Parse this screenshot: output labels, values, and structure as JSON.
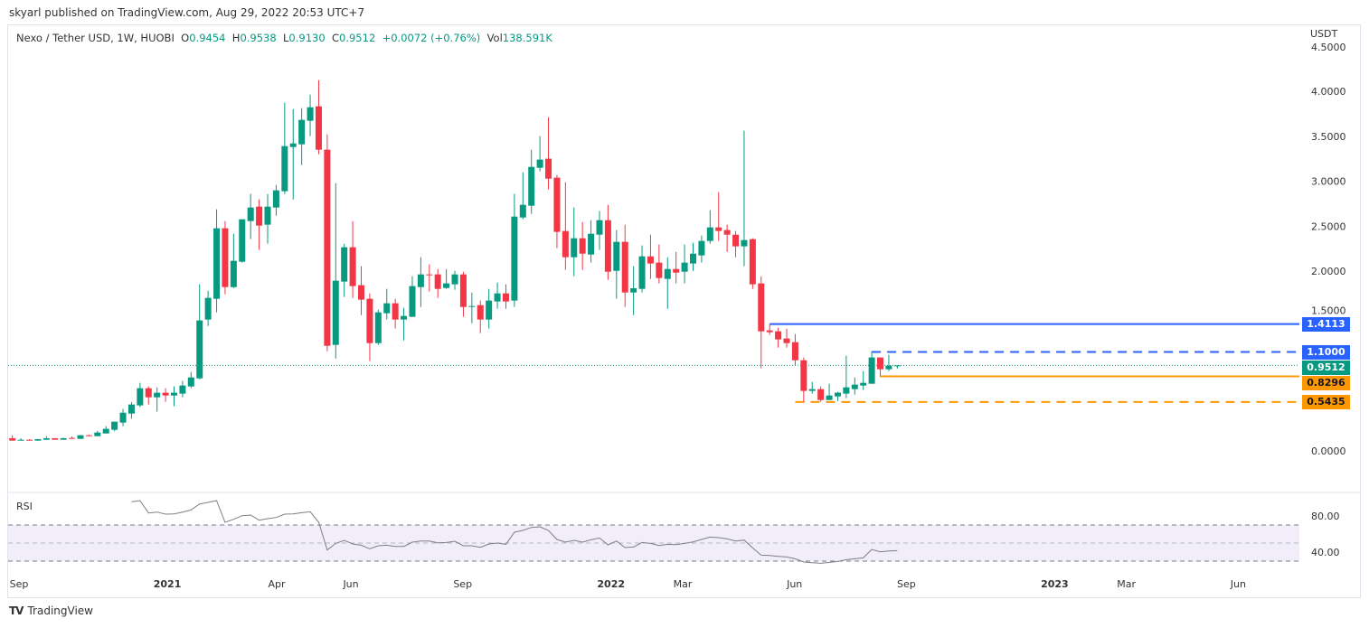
{
  "header": {
    "published": "skyarl published on TradingView.com, Aug 29, 2022 20:53 UTC+7"
  },
  "legend": {
    "symbol": "Nexo / Tether USD, 1W, HUOBI",
    "o_label": "O",
    "o": "0.9454",
    "h_label": "H",
    "h": "0.9538",
    "l_label": "L",
    "l": "0.9130",
    "c_label": "C",
    "c": "0.9512",
    "change": "+0.0072 (+0.76%)",
    "vol_label": "Vol",
    "vol": "138.591K"
  },
  "currency": "USDT",
  "rsi": {
    "label": "RSI",
    "ticks": [
      "80.00",
      "40.00"
    ]
  },
  "footer": {
    "brand": "TradingView",
    "logo": "TV"
  },
  "colors": {
    "up": "#089981",
    "down": "#f23645",
    "blue": "#2962ff",
    "orange": "#ff9800",
    "rsi": "#7e7e8a",
    "band": "#7e57c2"
  },
  "price_tags": [
    {
      "value": "1.4113",
      "color": "#2962ff",
      "text": "#fff"
    },
    {
      "value": "1.1000",
      "color": "#2962ff",
      "text": "#fff"
    },
    {
      "value": "0.9512",
      "color": "#089981",
      "text": "#fff"
    },
    {
      "value": "0.8296",
      "color": "#ff9800",
      "text": "#131722"
    },
    {
      "value": "0.5435",
      "color": "#ff9800",
      "text": "#131722"
    }
  ],
  "chart_data": {
    "type": "candlestick",
    "title": "Nexo / Tether USD, 1W, HUOBI",
    "start_week": "2020-08-31",
    "y_ticks": [
      "4.5000",
      "4.0000",
      "3.5000",
      "3.0000",
      "2.5000",
      "2.0000",
      "1.5000",
      "0.0000"
    ],
    "y_tick_values": [
      4.5,
      4.0,
      3.5,
      3.0,
      2.5,
      2.0,
      1.5,
      0.0
    ],
    "x_ticks": [
      {
        "label": "Sep",
        "date": "2020-09-01"
      },
      {
        "label": "2021",
        "date": "2021-01-01",
        "bold": true
      },
      {
        "label": "Apr",
        "date": "2021-04-01"
      },
      {
        "label": "Jun",
        "date": "2021-06-01"
      },
      {
        "label": "Sep",
        "date": "2021-09-01"
      },
      {
        "label": "2022",
        "date": "2022-01-01",
        "bold": true
      },
      {
        "label": "Mar",
        "date": "2022-03-01"
      },
      {
        "label": "Jun",
        "date": "2022-06-01"
      },
      {
        "label": "Sep",
        "date": "2022-09-01"
      },
      {
        "label": "2023",
        "date": "2023-01-01",
        "bold": true
      },
      {
        "label": "Mar",
        "date": "2023-03-01"
      },
      {
        "label": "Jun",
        "date": "2023-06-01"
      }
    ],
    "ohlc": [
      [
        0.141,
        0.174,
        0.114,
        0.114
      ],
      [
        0.114,
        0.141,
        0.114,
        0.124
      ],
      [
        0.124,
        0.13,
        0.114,
        0.114
      ],
      [
        0.114,
        0.131,
        0.114,
        0.131
      ],
      [
        0.124,
        0.164,
        0.124,
        0.141
      ],
      [
        0.141,
        0.141,
        0.124,
        0.124
      ],
      [
        0.124,
        0.147,
        0.124,
        0.141
      ],
      [
        0.144,
        0.16,
        0.134,
        0.134
      ],
      [
        0.134,
        0.178,
        0.134,
        0.174
      ],
      [
        0.174,
        0.181,
        0.164,
        0.164
      ],
      [
        0.164,
        0.224,
        0.164,
        0.204
      ],
      [
        0.194,
        0.275,
        0.194,
        0.245
      ],
      [
        0.235,
        0.325,
        0.218,
        0.325
      ],
      [
        0.315,
        0.466,
        0.275,
        0.425
      ],
      [
        0.415,
        0.543,
        0.358,
        0.516
      ],
      [
        0.506,
        0.757,
        0.486,
        0.697
      ],
      [
        0.697,
        0.717,
        0.516,
        0.596
      ],
      [
        0.596,
        0.707,
        0.436,
        0.647
      ],
      [
        0.647,
        0.697,
        0.546,
        0.616
      ],
      [
        0.616,
        0.717,
        0.496,
        0.647
      ],
      [
        0.637,
        0.777,
        0.596,
        0.727
      ],
      [
        0.717,
        0.878,
        0.697,
        0.817
      ],
      [
        0.807,
        1.853,
        0.797,
        1.451
      ],
      [
        1.461,
        1.782,
        1.39,
        1.702
      ],
      [
        1.692,
        2.687,
        1.541,
        2.476
      ],
      [
        2.476,
        2.556,
        1.742,
        1.822
      ],
      [
        1.822,
        2.415,
        1.812,
        2.114
      ],
      [
        2.104,
        2.576,
        2.094,
        2.576
      ],
      [
        2.556,
        2.858,
        2.355,
        2.707
      ],
      [
        2.717,
        2.797,
        2.235,
        2.506
      ],
      [
        2.516,
        2.858,
        2.305,
        2.717
      ],
      [
        2.707,
        2.958,
        2.616,
        2.898
      ],
      [
        2.888,
        3.873,
        2.858,
        3.39
      ],
      [
        3.38,
        3.802,
        2.797,
        3.42
      ],
      [
        3.41,
        3.812,
        3.179,
        3.682
      ],
      [
        3.672,
        3.963,
        3.501,
        3.822
      ],
      [
        3.832,
        4.124,
        3.3,
        3.35
      ],
      [
        3.35,
        3.521,
        1.109,
        1.169
      ],
      [
        1.179,
        2.978,
        1.028,
        1.893
      ],
      [
        1.883,
        2.305,
        1.712,
        2.265
      ],
      [
        2.265,
        2.556,
        1.702,
        1.833
      ],
      [
        1.843,
        2.054,
        1.511,
        1.682
      ],
      [
        1.692,
        1.752,
        0.998,
        1.199
      ],
      [
        1.199,
        1.571,
        1.179,
        1.541
      ],
      [
        1.531,
        1.802,
        1.461,
        1.642
      ],
      [
        1.642,
        1.692,
        1.36,
        1.461
      ],
      [
        1.461,
        1.591,
        1.229,
        1.501
      ],
      [
        1.491,
        1.943,
        1.491,
        1.833
      ],
      [
        1.822,
        2.154,
        1.601,
        1.963
      ],
      [
        1.963,
        2.074,
        1.772,
        1.953
      ],
      [
        1.963,
        2.023,
        1.702,
        1.802
      ],
      [
        1.812,
        2.023,
        1.802,
        1.863
      ],
      [
        1.853,
        2.003,
        1.792,
        1.963
      ],
      [
        1.963,
        1.993,
        1.491,
        1.601
      ],
      [
        1.601,
        1.762,
        1.42,
        1.611
      ],
      [
        1.621,
        1.672,
        1.31,
        1.461
      ],
      [
        1.461,
        1.802,
        1.36,
        1.672
      ],
      [
        1.662,
        1.873,
        1.581,
        1.752
      ],
      [
        1.752,
        1.853,
        1.581,
        1.662
      ],
      [
        1.672,
        2.858,
        1.601,
        2.606
      ],
      [
        2.596,
        3.099,
        2.576,
        2.737
      ],
      [
        2.727,
        3.35,
        2.637,
        3.159
      ],
      [
        3.149,
        3.501,
        3.109,
        3.24
      ],
      [
        3.25,
        3.712,
        2.908,
        3.028
      ],
      [
        3.039,
        3.069,
        2.255,
        2.436
      ],
      [
        2.446,
        2.988,
        2.013,
        2.154
      ],
      [
        2.154,
        2.707,
        1.943,
        2.365
      ],
      [
        2.365,
        2.546,
        2.013,
        2.194
      ],
      [
        2.184,
        2.566,
        2.094,
        2.415
      ],
      [
        2.405,
        2.667,
        2.235,
        2.566
      ],
      [
        2.566,
        2.737,
        1.903,
        1.993
      ],
      [
        2.003,
        2.456,
        1.692,
        2.325
      ],
      [
        2.325,
        2.516,
        1.601,
        1.762
      ],
      [
        1.762,
        2.054,
        1.511,
        1.809
      ],
      [
        1.802,
        2.285,
        1.762,
        2.164
      ],
      [
        2.164,
        2.405,
        1.913,
        2.084
      ],
      [
        2.094,
        2.295,
        1.863,
        1.923
      ],
      [
        1.913,
        2.154,
        1.581,
        2.023
      ],
      [
        2.023,
        2.214,
        1.863,
        1.983
      ],
      [
        1.993,
        2.295,
        1.863,
        2.094
      ],
      [
        2.084,
        2.315,
        2.003,
        2.194
      ],
      [
        2.174,
        2.395,
        2.094,
        2.335
      ],
      [
        2.335,
        2.677,
        2.305,
        2.486
      ],
      [
        2.486,
        2.878,
        2.335,
        2.446
      ],
      [
        2.456,
        2.516,
        2.214,
        2.405
      ],
      [
        2.405,
        2.446,
        2.154,
        2.275
      ],
      [
        2.275,
        3.561,
        2.054,
        2.345
      ],
      [
        2.355,
        2.365,
        1.802,
        1.853
      ],
      [
        1.863,
        1.943,
        0.918,
        1.33
      ],
      [
        1.34,
        1.41,
        1.29,
        1.32
      ],
      [
        1.33,
        1.37,
        1.149,
        1.24
      ],
      [
        1.25,
        1.36,
        1.149,
        1.199
      ],
      [
        1.209,
        1.3,
        0.948,
        1.008
      ],
      [
        1.008,
        1.039,
        0.546,
        0.667
      ],
      [
        0.667,
        0.767,
        0.637,
        0.687
      ],
      [
        0.687,
        0.717,
        0.546,
        0.566
      ],
      [
        0.566,
        0.747,
        0.566,
        0.616
      ],
      [
        0.606,
        0.657,
        0.556,
        0.647
      ],
      [
        0.637,
        1.059,
        0.586,
        0.707
      ],
      [
        0.687,
        0.817,
        0.626,
        0.737
      ],
      [
        0.727,
        0.888,
        0.677,
        0.757
      ],
      [
        0.747,
        1.109,
        0.747,
        1.039
      ],
      [
        1.039,
        1.039,
        0.827,
        0.908
      ],
      [
        0.908,
        1.069,
        0.888,
        0.948
      ],
      [
        0.9454,
        0.9538,
        0.913,
        0.9512
      ]
    ],
    "rsi_start_index": 14,
    "rsi": [
      95.6,
      97,
      83.3,
      84.3,
      82,
      82.3,
      84.3,
      86.6,
      93.3,
      95,
      97,
      73,
      76.3,
      80.3,
      81,
      75.3,
      77,
      78.3,
      82,
      82.3,
      83.6,
      84.6,
      73,
      42.3,
      49.6,
      53,
      49,
      47.6,
      43.6,
      47,
      47.6,
      46.3,
      46.3,
      51,
      52.3,
      52.3,
      50.3,
      50.6,
      52,
      47,
      47,
      45.3,
      49,
      50,
      48.6,
      62,
      64,
      67.3,
      68,
      64,
      54,
      51,
      53,
      51,
      53.6,
      55.6,
      48,
      52.3,
      45,
      45.6,
      50.6,
      49.6,
      47.3,
      48.6,
      48.3,
      49.6,
      51.3,
      54,
      56.6,
      56,
      54.6,
      52.3,
      53.3,
      44.6,
      36.6,
      36.3,
      35.3,
      34.6,
      32.6,
      29,
      28.3,
      27.6,
      28.6,
      29.6,
      31.6,
      32.6,
      33.6,
      43,
      40.3,
      41.3,
      41.6
    ],
    "rsi_levels": [
      70,
      50,
      30
    ],
    "horizontal_lines": [
      {
        "price": 1.4113,
        "style": "solid",
        "color": "#2962ff",
        "from_index": 89
      },
      {
        "price": 1.1,
        "style": "dashed",
        "color": "#2962ff",
        "from_index": 101
      },
      {
        "price": 0.8296,
        "style": "solid",
        "color": "#ff9800",
        "from_index": 102
      },
      {
        "price": 0.5435,
        "style": "dashed",
        "color": "#ff9800",
        "from_index": 92
      }
    ],
    "last_price": 0.9512
  }
}
